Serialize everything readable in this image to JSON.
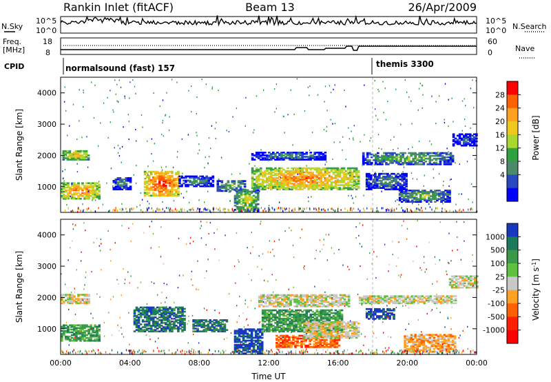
{
  "header": {
    "site_title": "Rankin Inlet (fitACF)",
    "beam": "Beam 13",
    "date": "26/Apr/2009"
  },
  "nsky_panel": {
    "left_label": "N.Sky",
    "right_label": "N.Search",
    "tick_top": "10^5",
    "tick_bottom": "10^0"
  },
  "freq_panel": {
    "left_label_1": "Freq.",
    "left_label_2": "[MHz]",
    "left_tick_top": "18",
    "left_tick_bottom": "8",
    "right_label": "Nave",
    "right_tick_top": "60",
    "right_tick_bottom": "0"
  },
  "cpid_panel": {
    "label": "CPID",
    "modes": [
      {
        "name": "normalsound (fast) 157",
        "start_hour": 0
      },
      {
        "name": "themis 3300",
        "start_hour": 18
      }
    ]
  },
  "chart_data": [
    {
      "type": "heatmap",
      "name": "power",
      "x_range_hours": [
        0,
        24
      ],
      "ylabel": "Slant Range [km]",
      "ylim": [
        180,
        4500
      ],
      "y_ticks": [
        1000,
        2000,
        3000,
        4000
      ],
      "colorbar": {
        "label": "Power [dB]",
        "ticks": [
          "28",
          "24",
          "20",
          "16",
          "12",
          "8",
          "4"
        ],
        "colors": [
          "#ff0000",
          "#ff6000",
          "#ffa020",
          "#f0c820",
          "#a8d830",
          "#30a040",
          "#4a8a6a",
          "#2a48c0",
          "#0000ff"
        ]
      },
      "regions": [
        {
          "t0": 0.1,
          "t1": 1.6,
          "r0": 1850,
          "r1": 2150,
          "level": 6
        },
        {
          "t0": 0.0,
          "t1": 2.2,
          "r0": 600,
          "r1": 1100,
          "level": 7
        },
        {
          "t0": 3.0,
          "t1": 4.0,
          "r0": 900,
          "r1": 1300,
          "level": 3
        },
        {
          "t0": 4.8,
          "t1": 6.8,
          "r0": 700,
          "r1": 1500,
          "level": 8
        },
        {
          "t0": 6.8,
          "t1": 8.8,
          "r0": 1000,
          "r1": 1350,
          "level": 3
        },
        {
          "t0": 9.0,
          "t1": 10.6,
          "r0": 850,
          "r1": 1200,
          "level": 4
        },
        {
          "t0": 10.0,
          "t1": 11.4,
          "r0": 200,
          "r1": 900,
          "level": 5
        },
        {
          "t0": 11.0,
          "t1": 17.2,
          "r0": 900,
          "r1": 1600,
          "level": 7
        },
        {
          "t0": 11.0,
          "t1": 15.2,
          "r0": 1850,
          "r1": 2100,
          "level": 3
        },
        {
          "t0": 17.4,
          "t1": 22.6,
          "r0": 1700,
          "r1": 2100,
          "level": 4
        },
        {
          "t0": 17.6,
          "t1": 20.0,
          "r0": 900,
          "r1": 1400,
          "level": 3
        },
        {
          "t0": 19.5,
          "t1": 22.4,
          "r0": 500,
          "r1": 900,
          "level": 4
        },
        {
          "t0": 22.6,
          "t1": 24.0,
          "r0": 2300,
          "r1": 2700,
          "level": 2
        }
      ]
    },
    {
      "type": "heatmap",
      "name": "velocity",
      "x_range_hours": [
        0,
        24
      ],
      "xlabel": "Time UT",
      "x_ticks": [
        "00:00",
        "04:00",
        "08:00",
        "12:00",
        "16:00",
        "20:00",
        "00:00"
      ],
      "ylabel": "Slant Range [km]",
      "ylim": [
        180,
        4500
      ],
      "y_ticks": [
        1000,
        2000,
        3000,
        4000
      ],
      "colorbar": {
        "label": "Velocity [m s",
        "label_superscript": "-1",
        "label_suffix": "]",
        "ticks": [
          "1000",
          "500",
          "100",
          "25",
          "-25",
          "-100",
          "-500",
          "-1000"
        ],
        "colors": [
          "#1838c0",
          "#1a7a5a",
          "#3a9a4a",
          "#60c040",
          "#c8c8c8",
          "#ffa020",
          "#ff6000",
          "#ff2000",
          "#ff0000"
        ]
      },
      "regions": [
        {
          "t0": 0.0,
          "t1": 1.6,
          "r0": 1800,
          "r1": 2100,
          "level": 4
        },
        {
          "t0": 0.0,
          "t1": 2.2,
          "r0": 600,
          "r1": 1100,
          "level": 2
        },
        {
          "t0": 4.2,
          "t1": 7.2,
          "r0": 900,
          "r1": 1700,
          "level": 1
        },
        {
          "t0": 7.6,
          "t1": 9.6,
          "r0": 900,
          "r1": 1300,
          "level": 1
        },
        {
          "t0": 10.0,
          "t1": 11.6,
          "r0": 200,
          "r1": 1000,
          "level": 0
        },
        {
          "t0": 11.6,
          "t1": 16.2,
          "r0": 900,
          "r1": 1600,
          "level": 2
        },
        {
          "t0": 12.4,
          "t1": 16.0,
          "r0": 400,
          "r1": 800,
          "level": 6
        },
        {
          "t0": 14.0,
          "t1": 17.2,
          "r0": 700,
          "r1": 1200,
          "level": 4
        },
        {
          "t0": 11.4,
          "t1": 16.6,
          "r0": 1700,
          "r1": 2100,
          "level": 4
        },
        {
          "t0": 17.2,
          "t1": 22.8,
          "r0": 1800,
          "r1": 2050,
          "level": 4
        },
        {
          "t0": 17.6,
          "t1": 19.2,
          "r0": 1300,
          "r1": 1650,
          "level": 0
        },
        {
          "t0": 19.8,
          "t1": 22.8,
          "r0": 250,
          "r1": 800,
          "level": 5
        },
        {
          "t0": 22.4,
          "t1": 24.0,
          "r0": 2300,
          "r1": 2700,
          "level": 4
        }
      ]
    }
  ]
}
